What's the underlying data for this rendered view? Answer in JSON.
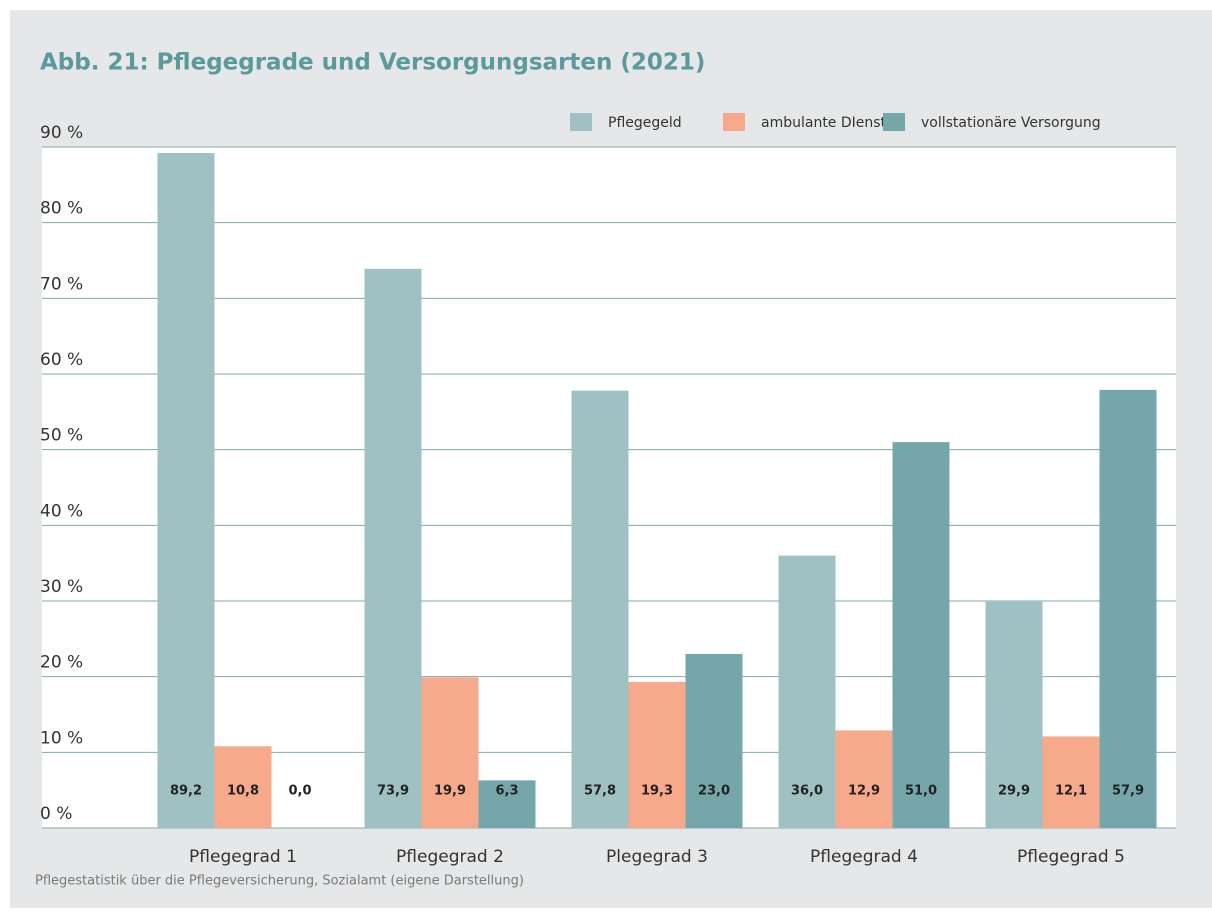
{
  "chart_data": {
    "type": "bar",
    "title": "Abb. 21: Pflegegrade und Versorgungsarten (2021)",
    "source": "Pflegestatistik über die Pflegeversicherung, Sozialamt (eigene Darstellung)",
    "categories": [
      "Pflegegrad 1",
      "Pflegegrad 2",
      "Plegegrad 3",
      "Pflegegrad 4",
      "Pflegegrad 5"
    ],
    "series": [
      {
        "name": "Pflegegeld",
        "color": "#9fc1c3",
        "values": [
          89.2,
          73.9,
          57.8,
          36.0,
          29.9
        ],
        "value_labels": [
          "89,2",
          "73,9",
          "57,8",
          "36,0",
          "29,9"
        ]
      },
      {
        "name": "ambulante DIenste",
        "color": "#f7a98b",
        "values": [
          10.8,
          19.9,
          19.3,
          12.9,
          12.1
        ],
        "value_labels": [
          "10,8",
          "19,9",
          "19,3",
          "12,9",
          "12,1"
        ]
      },
      {
        "name": "vollstationäre Versorgung",
        "color": "#75a7aa",
        "values": [
          0.0,
          6.3,
          23.0,
          51.0,
          57.9
        ],
        "value_labels": [
          "0,0",
          "6,3",
          "23,0",
          "51,0",
          "57,9"
        ]
      }
    ],
    "ylim": [
      0,
      90
    ],
    "yticks": [
      {
        "value": 0,
        "label": "0 %"
      },
      {
        "value": 10,
        "label": "10 %"
      },
      {
        "value": 20,
        "label": "20 %"
      },
      {
        "value": 30,
        "label": "30 %"
      },
      {
        "value": 40,
        "label": "40 %"
      },
      {
        "value": 50,
        "label": "50 %"
      },
      {
        "value": 60,
        "label": "60 %"
      },
      {
        "value": 70,
        "label": "70 %"
      },
      {
        "value": 80,
        "label": "80 %"
      },
      {
        "value": 90,
        "label": "90 %"
      }
    ],
    "grid": true,
    "legend": "top-right"
  }
}
